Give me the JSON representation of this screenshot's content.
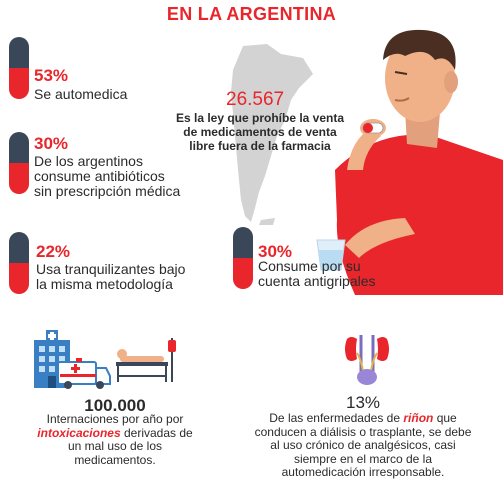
{
  "title": "EN LA ARGENTINA",
  "stats": [
    {
      "percent": "53%",
      "line1": "Se automedica",
      "line2": "",
      "line3": ""
    },
    {
      "percent": "30%",
      "line1": "De los argentinos",
      "line2": "consume antibióticos",
      "line3": "sin prescripción médica"
    },
    {
      "percent": "22%",
      "line1": "Usa tranquilizantes bajo",
      "line2": "la misma metodología",
      "line3": ""
    },
    {
      "percent": "30%",
      "line1": "Consume por su",
      "line2": "cuenta antigripales",
      "line3": ""
    }
  ],
  "law": {
    "number": "26.567",
    "line1": "Es la ley que prohíbe la venta",
    "line2": "de medicamentos de venta",
    "line3": "libre fuera de la farmacia"
  },
  "hospital": {
    "number": "100.000",
    "line1": "Internaciones por año por",
    "highlight": "intoxicaciones",
    "line2_rest": " derivadas de",
    "line3": "un mal uso de los",
    "line4": "medicamentos."
  },
  "kidney": {
    "percent": "13%",
    "line1_pre": "De las enfermedades de ",
    "highlight": "riñon",
    "line1_post": " que",
    "line2": "conducen a diálisis o trasplante, se debe",
    "line3": "al uso crónico de analgésicos, casi",
    "line4": "siempre en el marco de la",
    "line5": "automedicación irresponsable."
  },
  "colors": {
    "accent": "#e8262b",
    "dark": "#394759",
    "map": "#d3d3d3",
    "skin": "#f0b088"
  }
}
